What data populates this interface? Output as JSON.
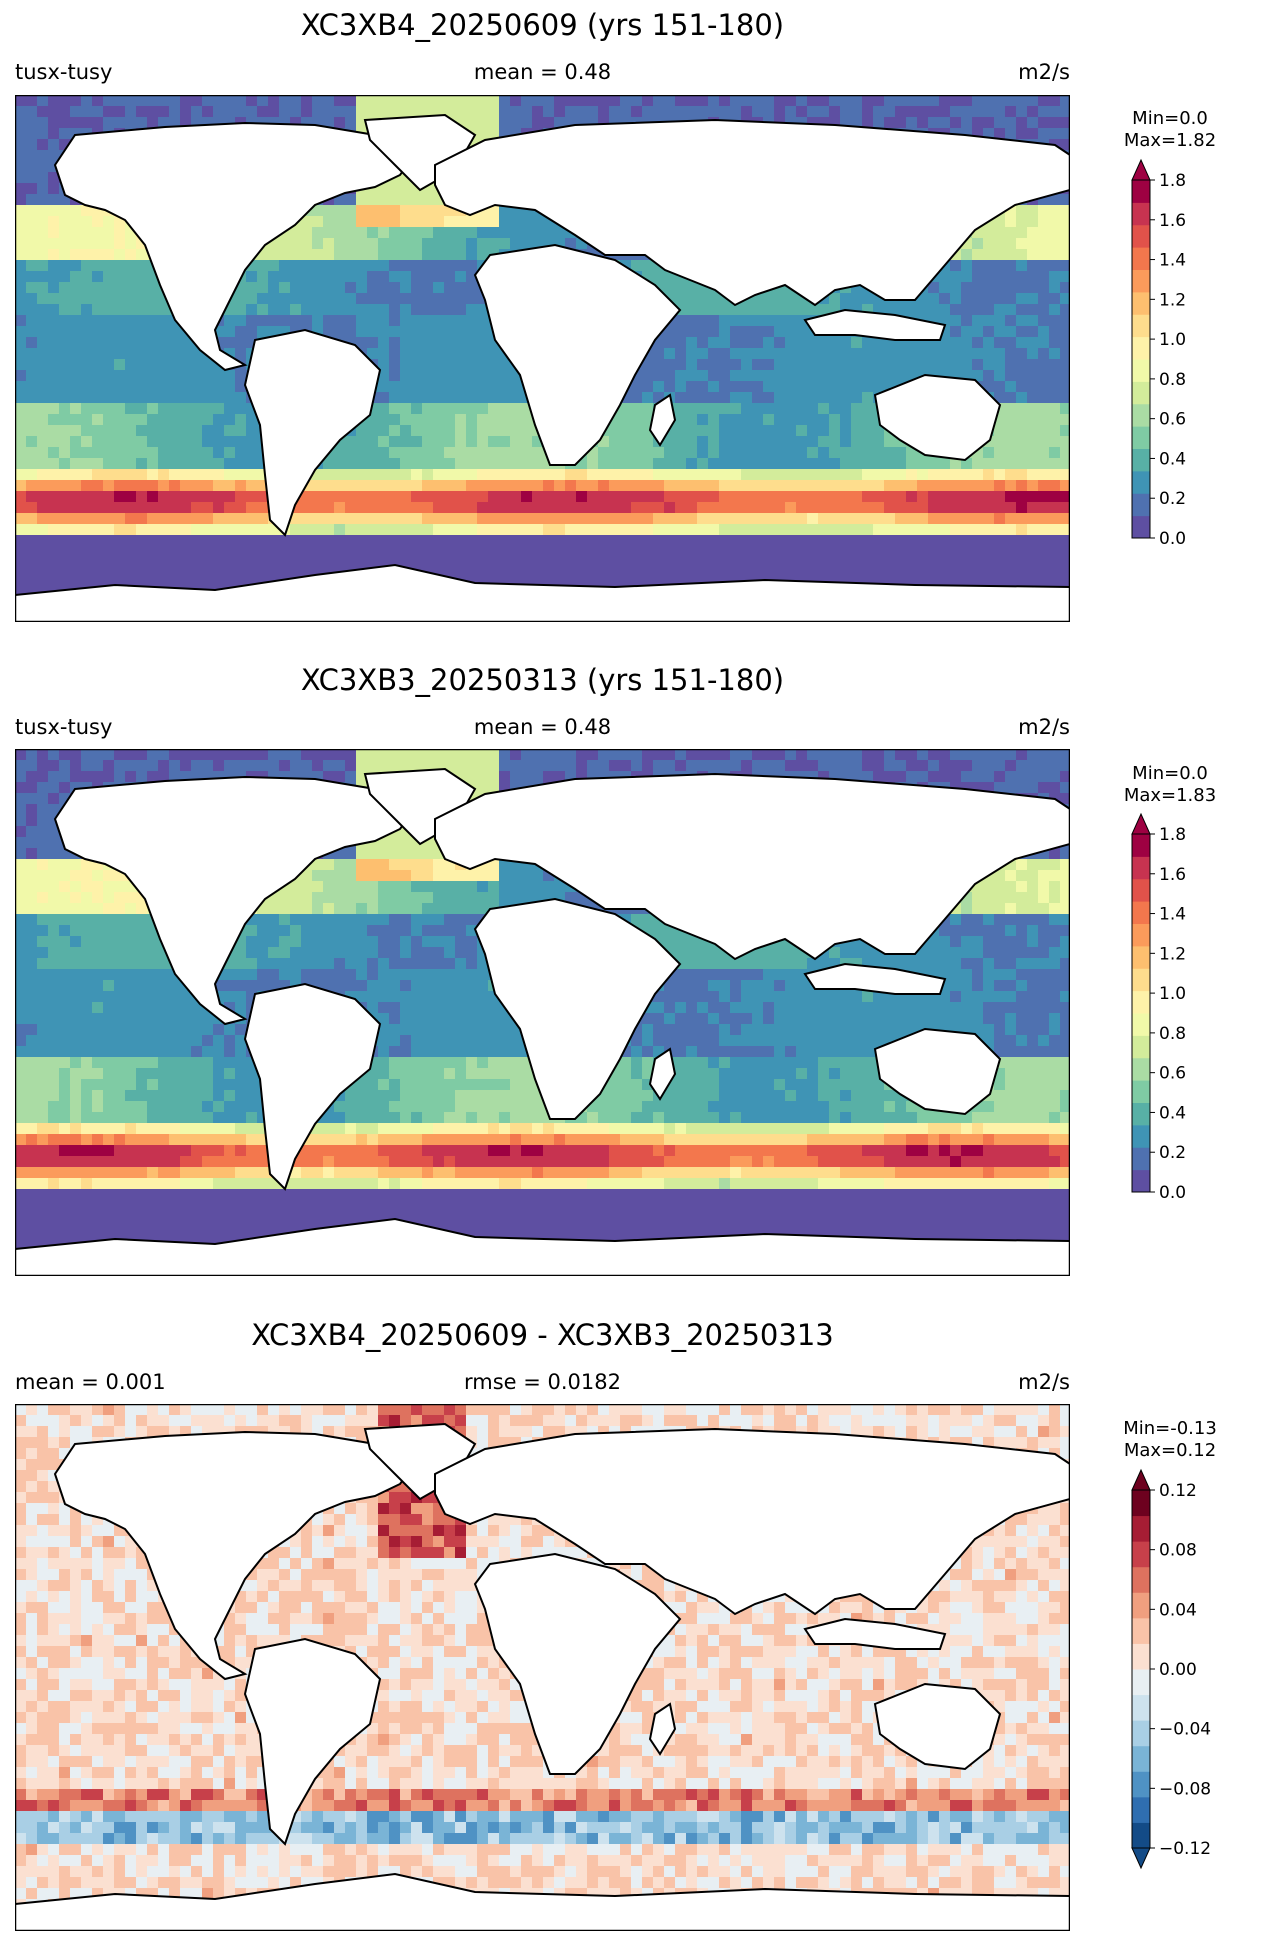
{
  "panels": [
    {
      "title": "XC3XB4_20250609 (yrs 151-180)",
      "left_label": "tusx-tusy",
      "center_label": "mean = 0.48",
      "right_label": "m2/s",
      "colorbar_min_label": "Min=0.0",
      "colorbar_max_label": "Max=1.82",
      "colorbar_ticks": [
        "0.0",
        "0.2",
        "0.4",
        "0.6",
        "0.8",
        "1.0",
        "1.2",
        "1.4",
        "1.6",
        "1.8"
      ],
      "colormap": [
        "#5e4fa2",
        "#4f71b0",
        "#3f94b5",
        "#58b0a6",
        "#7fcba4",
        "#aadca4",
        "#d3ec9b",
        "#f1f9a9",
        "#fef2a9",
        "#fedd8d",
        "#fdbf6f",
        "#fb9b5b",
        "#f3774d",
        "#e1524a",
        "#c73350",
        "#9e0142"
      ]
    },
    {
      "title": "XC3XB3_20250313 (yrs 151-180)",
      "left_label": "tusx-tusy",
      "center_label": "mean = 0.48",
      "right_label": "m2/s",
      "colorbar_min_label": "Min=0.0",
      "colorbar_max_label": "Max=1.83",
      "colorbar_ticks": [
        "0.0",
        "0.2",
        "0.4",
        "0.6",
        "0.8",
        "1.0",
        "1.2",
        "1.4",
        "1.6",
        "1.8"
      ],
      "colormap": [
        "#5e4fa2",
        "#4f71b0",
        "#3f94b5",
        "#58b0a6",
        "#7fcba4",
        "#aadca4",
        "#d3ec9b",
        "#f1f9a9",
        "#fef2a9",
        "#fedd8d",
        "#fdbf6f",
        "#fb9b5b",
        "#f3774d",
        "#e1524a",
        "#c73350",
        "#9e0142"
      ]
    },
    {
      "title": "XC3XB4_20250609 - XC3XB3_20250313",
      "left_label": "mean = 0.001",
      "center_label": "rmse = 0.0182",
      "right_label": "m2/s",
      "colorbar_min_label": "Min=-0.13",
      "colorbar_max_label": "Max=0.12",
      "colorbar_ticks": [
        "−0.12",
        "−0.08",
        "−0.04",
        "0.00",
        "0.04",
        "0.08",
        "0.12"
      ],
      "colormap": [
        "#134b87",
        "#2f6eb0",
        "#4f92c4",
        "#7ab4d6",
        "#a9cfe5",
        "#cde2ee",
        "#e8eff3",
        "#fbe0d1",
        "#f9c3a8",
        "#f09f7f",
        "#de725f",
        "#c7404a",
        "#a61d34",
        "#6d011f"
      ]
    }
  ],
  "colors": {
    "land": "#ffffff",
    "coastline": "#000000"
  }
}
